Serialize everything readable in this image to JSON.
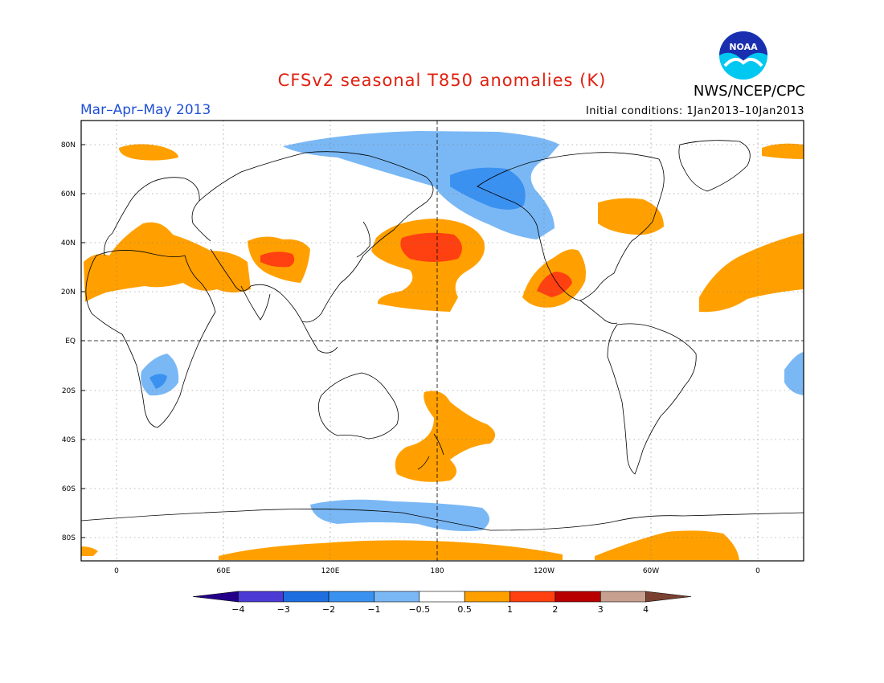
{
  "title": "CFSv2 seasonal T850 anomalies (K)",
  "season": "Mar–Apr–May 2013",
  "initial_conditions": "Initial conditions: 1Jan2013–10Jan2013",
  "agency": "NWS/NCEP/CPC",
  "logo_text": "NOAA",
  "lat_ticks": [
    "80N",
    "60N",
    "40N",
    "20N",
    "EQ",
    "20S",
    "40S",
    "60S",
    "80S"
  ],
  "lon_ticks": [
    "0",
    "60E",
    "120E",
    "180",
    "120W",
    "60W",
    "0"
  ],
  "colorbar": {
    "labels": [
      "−4",
      "−3",
      "−2",
      "−1",
      "−0.5",
      "0.5",
      "1",
      "2",
      "3",
      "4"
    ],
    "colors": [
      "#24008a",
      "#4b3bd4",
      "#1e6ee0",
      "#3b91f0",
      "#7ab8f5",
      "#ffffff",
      "#ffa000",
      "#ff4010",
      "#b80000",
      "#c8a090",
      "#7a4030"
    ]
  },
  "colors": {
    "cold_weak": "#7ab8f5",
    "cold_moderate": "#3b91f0",
    "warm_weak": "#ffa000",
    "warm_moderate": "#ff4010"
  }
}
